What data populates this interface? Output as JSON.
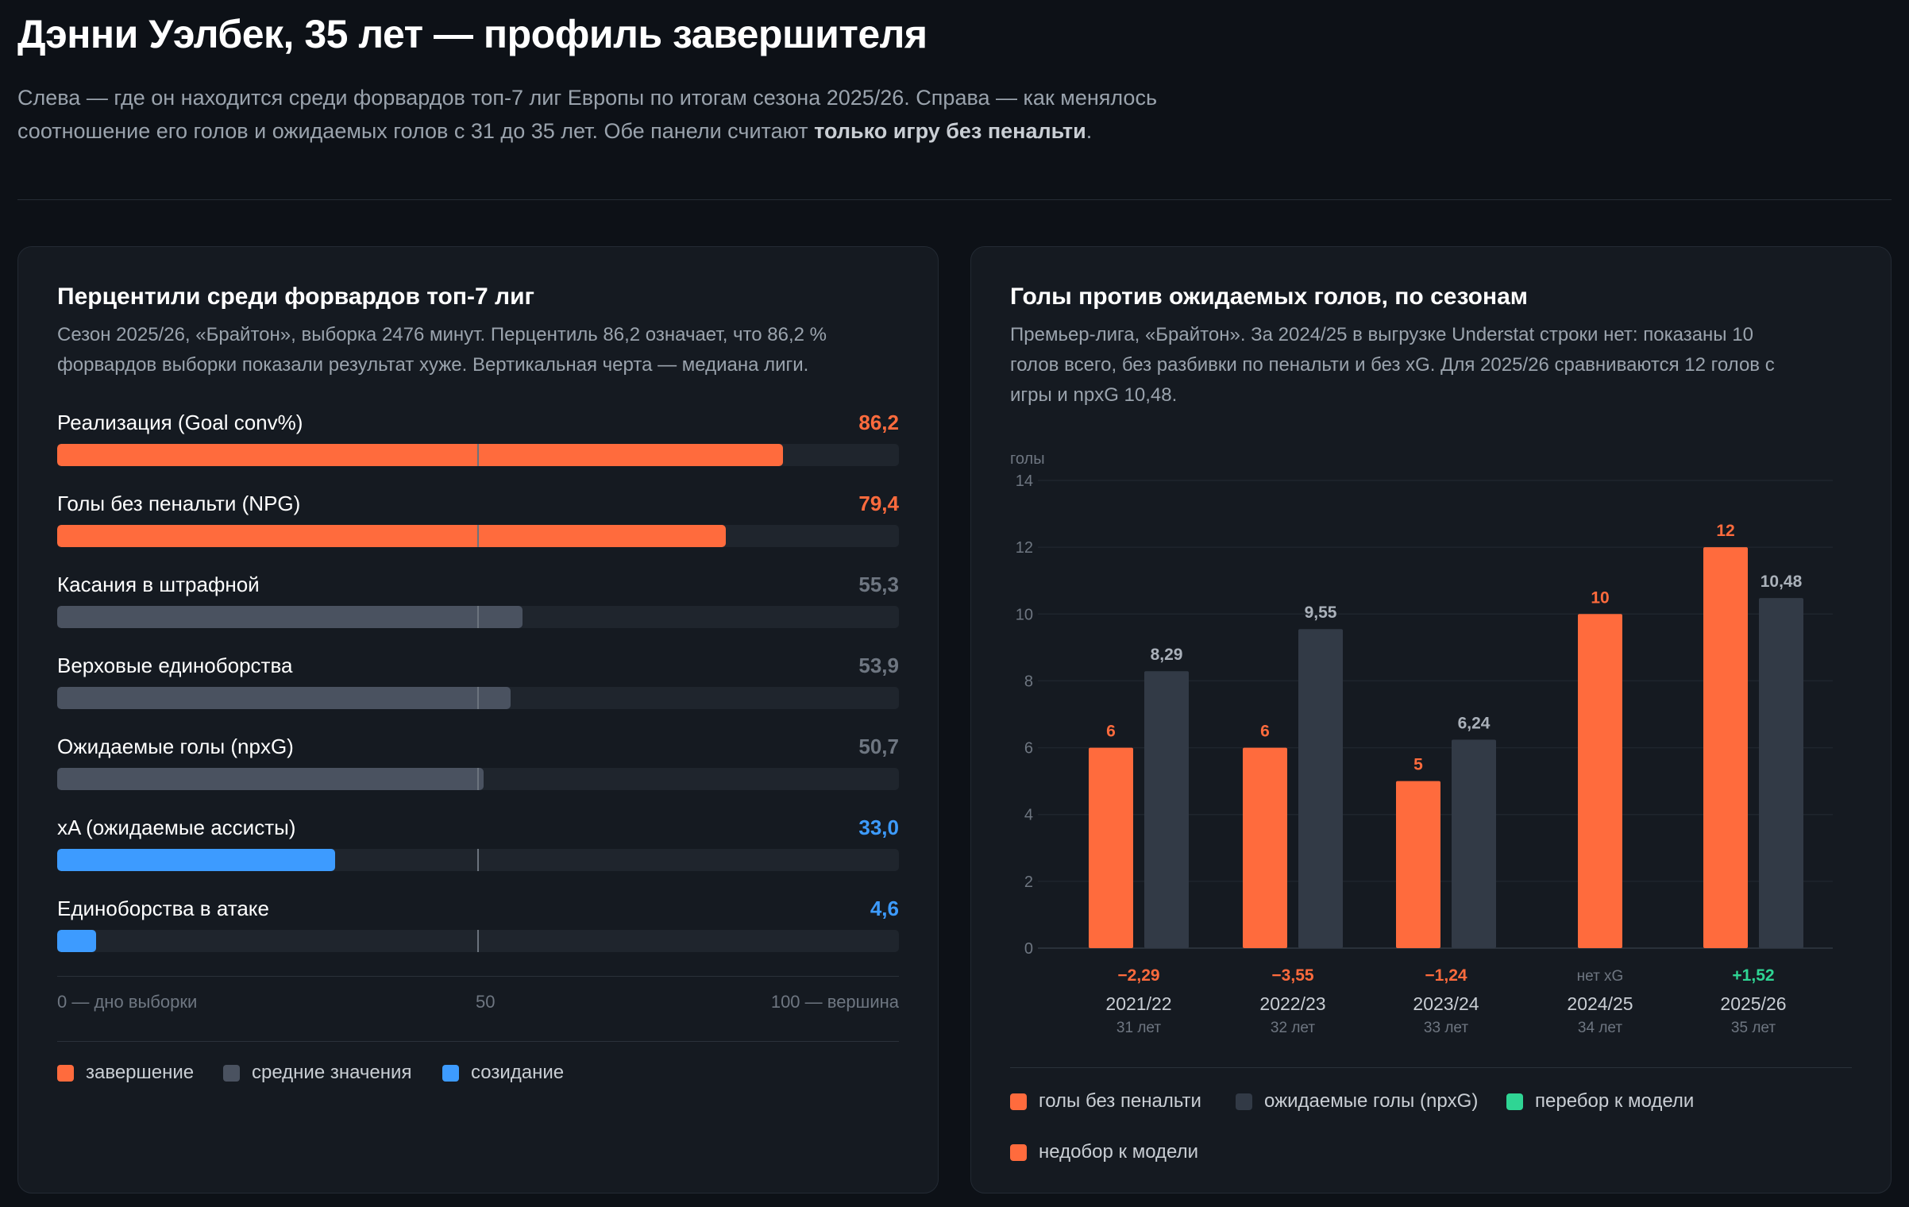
{
  "header": {
    "title": "Дэнни Уэлбек, 35 лет — профиль завершителя",
    "subtitle_line1": "Слева — где он находится среди форвардов топ-7 лиг Европы по итогам сезона 2025/26. Справа — как менялось",
    "subtitle_line2_plain": "соотношение его голов и ожидаемых голов с 31 до 35 лет. Обе панели считают ",
    "subtitle_line2_bold": "только игру без пенальти",
    "subtitle_line2_end": "."
  },
  "left_panel": {
    "title": "Перцентили среди форвардов топ-7 лиг",
    "subtitle_line1": "Сезон 2025/26, «Брайтон», выборка 2476 минут. Перцентиль 86,2 означает, что 86,2 %",
    "subtitle_line2": "форвардов выборки показали результат хуже. Вертикальная черта — медиана лиги.",
    "scale": {
      "left": "0 — дно выборки",
      "mid": "50",
      "right": "100 — вершина"
    },
    "legend": [
      {
        "label": "завершение",
        "color": "#ff6b3d"
      },
      {
        "label": "средние значения",
        "color": "#4a5260"
      },
      {
        "label": "созидание",
        "color": "#3d9bff"
      }
    ]
  },
  "right_panel": {
    "title": "Голы против ожидаемых голов, по сезонам",
    "subtitle_line1": "Премьер-лига, «Брайтон». За 2024/25 в выгрузке Understat строки нет: показаны 10",
    "subtitle_line2": "голов всего, без разбивки по пенальти и без xG. Для 2025/26 сравниваются 12 голов с",
    "subtitle_line3": "игры и npxG 10,48.",
    "legend": [
      {
        "label": "голы без пенальти",
        "color": "#ff6b3d"
      },
      {
        "label": "ожидаемые голы (npxG)",
        "color": "#323a46"
      },
      {
        "label": "перебор к модели",
        "color": "#2fd594"
      },
      {
        "label": "недобор к модели",
        "color": "#ff6b3d"
      }
    ]
  },
  "chart_data": [
    {
      "type": "bar",
      "orientation": "horizontal",
      "title": "Перцентили среди форвардов топ-7 лиг",
      "xlim": [
        0,
        100
      ],
      "median": 50,
      "categories": [
        "Реализация (Goal conv%)",
        "Голы без пенальти (NPG)",
        "Касания в штрафной",
        "Верховые единоборства",
        "Ожидаемые голы (npxG)",
        "xA (ожидаемые ассисты)",
        "Единоборства в атаке"
      ],
      "values": [
        86.2,
        79.4,
        55.3,
        53.9,
        50.7,
        33.0,
        4.6
      ],
      "value_labels": [
        "86,2",
        "79,4",
        "55,3",
        "53,9",
        "50,7",
        "33,0",
        "4,6"
      ],
      "groups": [
        "завершение",
        "завершение",
        "средние значения",
        "средние значения",
        "средние значения",
        "созидание",
        "созидание"
      ],
      "bar_colors": [
        "#ff6b3d",
        "#ff6b3d",
        "#4a5260",
        "#4a5260",
        "#4a5260",
        "#3d9bff",
        "#3d9bff"
      ],
      "label_colors": [
        "#ff6b3d",
        "#ff6b3d",
        "#6e7681",
        "#6e7681",
        "#6e7681",
        "#3d9bff",
        "#3d9bff"
      ]
    },
    {
      "type": "bar",
      "title": "Голы против ожидаемых голов, по сезонам",
      "ylabel": "голы",
      "ylim": [
        0,
        14
      ],
      "yticks": [
        0,
        2,
        4,
        6,
        8,
        10,
        12,
        14
      ],
      "categories": [
        "2021/22",
        "2022/23",
        "2023/24",
        "2024/25",
        "2025/26"
      ],
      "ages": [
        "31 лет",
        "32 лет",
        "33 лет",
        "34 лет",
        "35 лет"
      ],
      "series": [
        {
          "name": "голы без пенальти",
          "color": "#ff6b3d",
          "values": [
            6,
            6,
            5,
            10,
            12
          ],
          "labels": [
            "6",
            "6",
            "5",
            "10",
            "12"
          ]
        },
        {
          "name": "ожидаемые голы (npxG)",
          "color": "#323a46",
          "values": [
            8.29,
            9.55,
            6.24,
            null,
            10.48
          ],
          "labels": [
            "8,29",
            "9,55",
            "6,24",
            "",
            "10,48"
          ]
        }
      ],
      "diff_labels": [
        "−2,29",
        "−3,55",
        "−1,24",
        "нет xG",
        "+1,52"
      ],
      "diff_colors": [
        "#ff6b3d",
        "#ff6b3d",
        "#ff6b3d",
        "#6e7681",
        "#2fd594"
      ]
    }
  ]
}
